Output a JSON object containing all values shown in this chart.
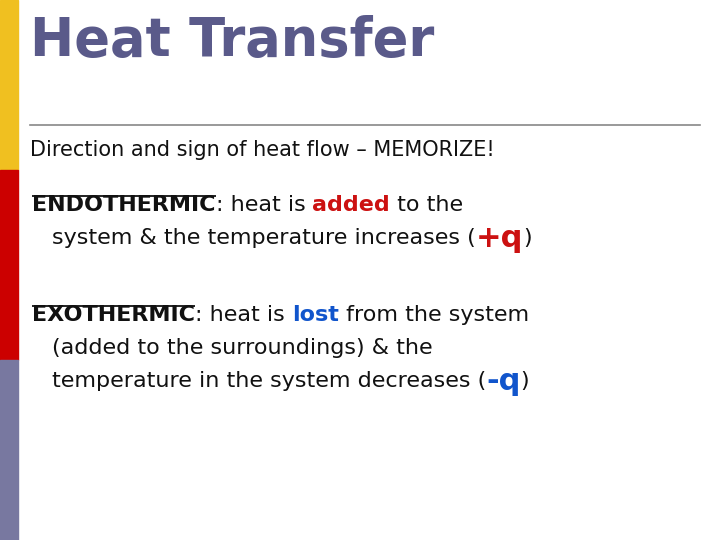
{
  "title": "Heat Transfer",
  "title_color": "#5a5a8a",
  "title_fontsize": 38,
  "title_fontweight": "bold",
  "subtitle": "Direction and sign of heat flow – MEMORIZE!",
  "subtitle_fontsize": 15,
  "subtitle_color": "#111111",
  "line_color": "#888888",
  "bg_color": "#ffffff",
  "left_bar_colors": [
    "#f0c020",
    "#cc0000",
    "#7878a0"
  ],
  "black": "#111111",
  "red": "#cc1111",
  "blue": "#1155cc",
  "body_fontsize": 16,
  "pq_fontsize": 22,
  "endo_label": "ENDOTHERMIC",
  "endo_mid1": ": heat is ",
  "endo_added": "added",
  "endo_mid2": " to the",
  "endo_line2": "system & the temperature increases (",
  "endo_pq": "+q",
  "endo_close": ")",
  "exo_label": "EXOTHERMIC",
  "exo_mid1": ": heat is ",
  "exo_lost": "lost",
  "exo_mid2": " from the system",
  "exo_line2": "(added to the surroundings) & the",
  "exo_line3": "temperature in the system decreases (",
  "exo_mq": "-q",
  "exo_close3": ")"
}
